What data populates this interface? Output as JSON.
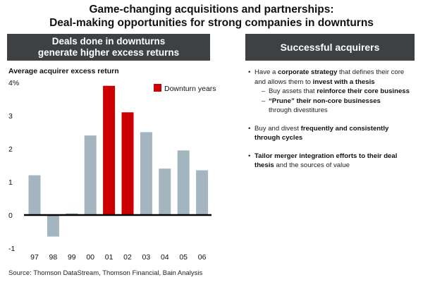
{
  "page": {
    "title_line1": "Game-changing acquisitions and partnerships:",
    "title_line2": "Deal-making opportunities for strong companies in downturns",
    "left_header_line1": "Deals done in downturns",
    "left_header_line2": "generate higher excess returns",
    "right_header": "Successful acquirers",
    "source": "Source: Thomson DataStream, Thomson Financial, Bain Analysis"
  },
  "chart_data": {
    "type": "bar",
    "ylabel": "Average acquirer excess return",
    "categories": [
      "97",
      "98",
      "99",
      "00",
      "01",
      "02",
      "03",
      "04",
      "05",
      "06"
    ],
    "values": [
      1.2,
      -0.65,
      0.05,
      2.4,
      3.9,
      3.1,
      2.5,
      1.4,
      1.95,
      1.35
    ],
    "downturn": [
      false,
      false,
      false,
      false,
      true,
      true,
      false,
      false,
      false,
      false
    ],
    "ylim": [
      -1,
      4
    ],
    "yticks": [
      {
        "value": 4,
        "label": "4%"
      },
      {
        "value": 3,
        "label": "3"
      },
      {
        "value": 2,
        "label": "2"
      },
      {
        "value": 1,
        "label": "1"
      },
      {
        "value": 0,
        "label": "0"
      },
      {
        "value": -1,
        "label": "-1"
      }
    ],
    "legend": {
      "label": "Downturn years",
      "position": "top-right"
    },
    "colors": {
      "normal": "#a3b6c0",
      "downturn": "#cc0000",
      "axis": "#000000"
    },
    "grid": false
  },
  "bullets": [
    {
      "parts": [
        {
          "t": "Have a ",
          "b": false
        },
        {
          "t": "corporate strategy",
          "b": true
        },
        {
          "t": " that defines their core and allows them to ",
          "b": false
        },
        {
          "t": "invest with a thesis",
          "b": true
        }
      ],
      "subs": [
        {
          "parts": [
            {
              "t": "Buy assets that ",
              "b": false
            },
            {
              "t": "reinforce their core business",
              "b": true
            }
          ]
        },
        {
          "parts": [
            {
              "t": "“Prune” their non-core businesses",
              "b": true
            }
          ],
          "cont": "through divestitures"
        }
      ]
    },
    {
      "parts": [
        {
          "t": "Buy and divest ",
          "b": false
        },
        {
          "t": "frequently and consistently through cycles",
          "b": true
        }
      ],
      "subs": []
    },
    {
      "parts": [
        {
          "t": "Tailor merger integration efforts to their deal thesis",
          "b": true
        },
        {
          "t": " and the sources of value",
          "b": false
        }
      ],
      "subs": []
    }
  ],
  "glyphs": {
    "bullet": "•",
    "dash": "–"
  }
}
